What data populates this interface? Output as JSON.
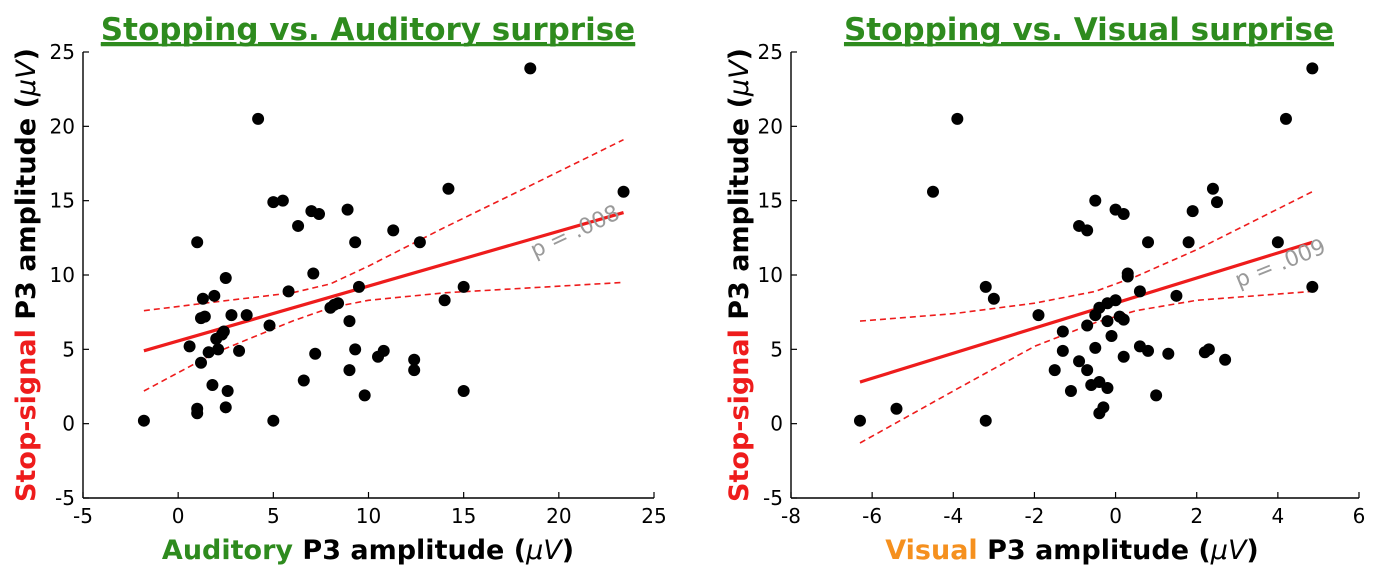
{
  "chart_data": [
    {
      "type": "scatter",
      "title": "Stopping vs. Auditory surprise",
      "xlabel_colored": "Auditory",
      "xlabel_rest": " P3 amplitude (",
      "xlabel_unit": "μV",
      "xlabel_close": ")",
      "ylabel_colored": "Stop-signal",
      "ylabel_rest": " P3 amplitude (",
      "ylabel_unit": "μV",
      "ylabel_close": ")",
      "xlim": [
        -5,
        25
      ],
      "ylim": [
        -5,
        25
      ],
      "xticks": [
        -5,
        0,
        5,
        10,
        15,
        20,
        25
      ],
      "yticks": [
        -5,
        0,
        5,
        10,
        15,
        20,
        25
      ],
      "p_label": "p = .008",
      "colors": {
        "title": "#2e8b1e",
        "xlabel_colored": "#2e8b1e",
        "ylabel_colored": "#ee1c1c",
        "fit": "#ee1c1c"
      },
      "fit": {
        "x": [
          -1.8,
          23.4
        ],
        "y": [
          4.9,
          14.2
        ]
      },
      "ci_upper": {
        "x": [
          -1.8,
          2,
          6,
          8,
          10,
          14,
          18,
          23.4
        ],
        "y": [
          7.6,
          8.2,
          8.8,
          9.4,
          10.6,
          13.2,
          15.7,
          19.1
        ]
      },
      "ci_lower": {
        "x": [
          -1.8,
          2,
          6,
          8,
          10,
          14,
          18,
          23.4
        ],
        "y": [
          2.2,
          4.8,
          6.9,
          7.8,
          8.3,
          8.8,
          9.1,
          9.5
        ]
      },
      "points": [
        {
          "x": -1.8,
          "y": 0.2
        },
        {
          "x": 0.6,
          "y": 5.2
        },
        {
          "x": 1.0,
          "y": 12.2
        },
        {
          "x": 1.0,
          "y": 1.0
        },
        {
          "x": 1.0,
          "y": 0.7
        },
        {
          "x": 1.2,
          "y": 7.1
        },
        {
          "x": 1.3,
          "y": 8.4
        },
        {
          "x": 1.4,
          "y": 7.2
        },
        {
          "x": 1.2,
          "y": 4.1
        },
        {
          "x": 1.6,
          "y": 4.8
        },
        {
          "x": 1.8,
          "y": 2.6
        },
        {
          "x": 1.9,
          "y": 8.6
        },
        {
          "x": 2.0,
          "y": 5.7
        },
        {
          "x": 2.1,
          "y": 5.0
        },
        {
          "x": 2.3,
          "y": 6.0
        },
        {
          "x": 2.4,
          "y": 6.2
        },
        {
          "x": 2.5,
          "y": 9.8
        },
        {
          "x": 2.5,
          "y": 1.1
        },
        {
          "x": 2.6,
          "y": 2.2
        },
        {
          "x": 2.8,
          "y": 7.3
        },
        {
          "x": 3.2,
          "y": 4.9
        },
        {
          "x": 3.6,
          "y": 7.3
        },
        {
          "x": 4.2,
          "y": 20.5
        },
        {
          "x": 4.8,
          "y": 6.6
        },
        {
          "x": 5.0,
          "y": 14.9
        },
        {
          "x": 5.0,
          "y": 0.2
        },
        {
          "x": 5.5,
          "y": 15.0
        },
        {
          "x": 5.8,
          "y": 8.9
        },
        {
          "x": 6.3,
          "y": 13.3
        },
        {
          "x": 6.6,
          "y": 2.9
        },
        {
          "x": 7.0,
          "y": 14.3
        },
        {
          "x": 7.1,
          "y": 10.1
        },
        {
          "x": 7.2,
          "y": 4.7
        },
        {
          "x": 7.4,
          "y": 14.1
        },
        {
          "x": 8.0,
          "y": 7.8
        },
        {
          "x": 8.2,
          "y": 8.0
        },
        {
          "x": 8.4,
          "y": 8.1
        },
        {
          "x": 8.9,
          "y": 14.4
        },
        {
          "x": 9.0,
          "y": 6.9
        },
        {
          "x": 9.0,
          "y": 3.6
        },
        {
          "x": 9.3,
          "y": 12.2
        },
        {
          "x": 9.3,
          "y": 5.0
        },
        {
          "x": 9.5,
          "y": 9.2
        },
        {
          "x": 9.8,
          "y": 1.9
        },
        {
          "x": 10.5,
          "y": 4.5
        },
        {
          "x": 10.8,
          "y": 4.9
        },
        {
          "x": 11.3,
          "y": 13.0
        },
        {
          "x": 12.4,
          "y": 4.3
        },
        {
          "x": 12.4,
          "y": 3.6
        },
        {
          "x": 12.7,
          "y": 12.2
        },
        {
          "x": 14.0,
          "y": 8.3
        },
        {
          "x": 14.2,
          "y": 15.8
        },
        {
          "x": 15.0,
          "y": 9.2
        },
        {
          "x": 15.0,
          "y": 2.2
        },
        {
          "x": 18.5,
          "y": 23.9
        },
        {
          "x": 23.4,
          "y": 15.6
        }
      ]
    },
    {
      "type": "scatter",
      "title": "Stopping vs. Visual surprise",
      "xlabel_colored": "Visual",
      "xlabel_rest": " P3 amplitude (",
      "xlabel_unit": "μV",
      "xlabel_close": ")",
      "ylabel_colored": "Stop-signal",
      "ylabel_rest": " P3 amplitude (",
      "ylabel_unit": "μV",
      "ylabel_close": ")",
      "xlim": [
        -8,
        6
      ],
      "ylim": [
        -5,
        25
      ],
      "xticks": [
        -8,
        -6,
        -4,
        -2,
        0,
        2,
        4,
        6
      ],
      "yticks": [
        -5,
        0,
        5,
        10,
        15,
        20,
        25
      ],
      "p_label": "p = .009",
      "colors": {
        "title": "#2e8b1e",
        "xlabel_colored": "#f5901e",
        "ylabel_colored": "#ee1c1c",
        "fit": "#ee1c1c"
      },
      "fit": {
        "x": [
          -6.3,
          4.85
        ],
        "y": [
          2.8,
          12.2
        ]
      },
      "ci_upper": {
        "x": [
          -6.3,
          -4,
          -2,
          -0.5,
          0.5,
          2,
          4.85
        ],
        "y": [
          6.9,
          7.4,
          8.1,
          8.9,
          9.9,
          11.7,
          15.6
        ]
      },
      "ci_lower": {
        "x": [
          -6.3,
          -4,
          -2,
          -0.5,
          0.5,
          2,
          4.85
        ],
        "y": [
          -1.3,
          2.2,
          5.2,
          6.8,
          7.6,
          8.3,
          8.9
        ]
      },
      "points": [
        {
          "x": -6.3,
          "y": 0.2
        },
        {
          "x": -5.4,
          "y": 1.0
        },
        {
          "x": -4.5,
          "y": 15.6
        },
        {
          "x": -3.9,
          "y": 20.5
        },
        {
          "x": -3.2,
          "y": 9.2
        },
        {
          "x": -3.2,
          "y": 0.2
        },
        {
          "x": -3.0,
          "y": 8.4
        },
        {
          "x": -1.9,
          "y": 7.3
        },
        {
          "x": -1.5,
          "y": 3.6
        },
        {
          "x": -1.3,
          "y": 6.2
        },
        {
          "x": -1.3,
          "y": 4.9
        },
        {
          "x": -1.1,
          "y": 2.2
        },
        {
          "x": -0.9,
          "y": 13.3
        },
        {
          "x": -0.9,
          "y": 4.2
        },
        {
          "x": -0.7,
          "y": 13.0
        },
        {
          "x": -0.7,
          "y": 6.6
        },
        {
          "x": -0.7,
          "y": 3.6
        },
        {
          "x": -0.6,
          "y": 2.6
        },
        {
          "x": -0.5,
          "y": 15.0
        },
        {
          "x": -0.5,
          "y": 7.3
        },
        {
          "x": -0.5,
          "y": 5.1
        },
        {
          "x": -0.4,
          "y": 7.8
        },
        {
          "x": -0.4,
          "y": 2.8
        },
        {
          "x": -0.4,
          "y": 0.7
        },
        {
          "x": -0.3,
          "y": 1.1
        },
        {
          "x": -0.2,
          "y": 8.1
        },
        {
          "x": -0.2,
          "y": 6.9
        },
        {
          "x": -0.2,
          "y": 2.4
        },
        {
          "x": -0.1,
          "y": 5.9
        },
        {
          "x": 0.0,
          "y": 8.3
        },
        {
          "x": 0.0,
          "y": 14.4
        },
        {
          "x": 0.1,
          "y": 7.2
        },
        {
          "x": 0.2,
          "y": 14.1
        },
        {
          "x": 0.2,
          "y": 7.0
        },
        {
          "x": 0.2,
          "y": 4.5
        },
        {
          "x": 0.3,
          "y": 10.1
        },
        {
          "x": 0.3,
          "y": 9.9
        },
        {
          "x": 0.6,
          "y": 8.9
        },
        {
          "x": 0.6,
          "y": 5.2
        },
        {
          "x": 0.8,
          "y": 12.2
        },
        {
          "x": 0.8,
          "y": 4.9
        },
        {
          "x": 1.0,
          "y": 1.9
        },
        {
          "x": 1.3,
          "y": 4.7
        },
        {
          "x": 1.5,
          "y": 8.6
        },
        {
          "x": 1.8,
          "y": 12.2
        },
        {
          "x": 1.9,
          "y": 14.3
        },
        {
          "x": 2.2,
          "y": 4.8
        },
        {
          "x": 2.3,
          "y": 5.0
        },
        {
          "x": 2.4,
          "y": 15.8
        },
        {
          "x": 2.5,
          "y": 14.9
        },
        {
          "x": 2.7,
          "y": 4.3
        },
        {
          "x": 4.0,
          "y": 12.2
        },
        {
          "x": 4.2,
          "y": 20.5
        },
        {
          "x": 4.85,
          "y": 23.9
        },
        {
          "x": 4.85,
          "y": 9.2
        }
      ]
    }
  ]
}
